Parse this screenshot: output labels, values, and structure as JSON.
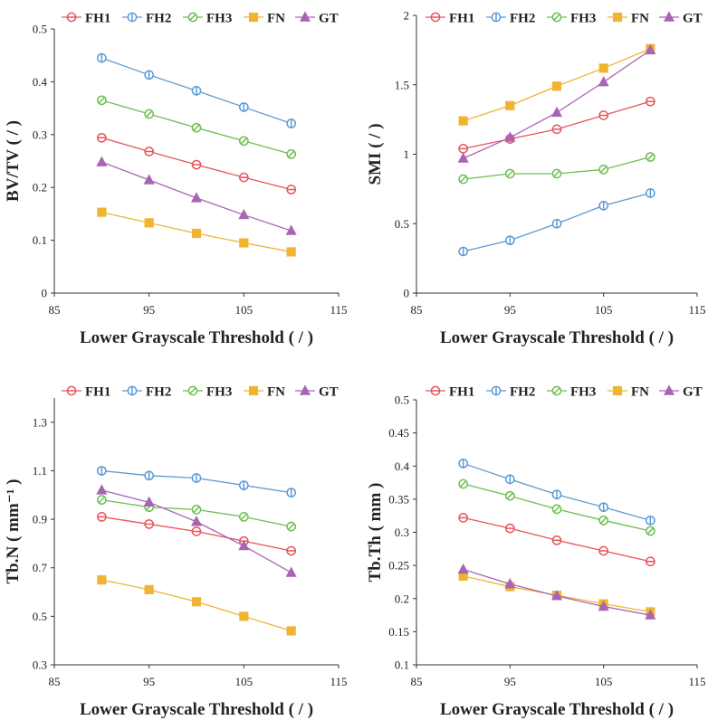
{
  "chart_data": [
    {
      "type": "line",
      "ylabel": "BV/TV ( / )",
      "xlabel": "Lower Grayscale Threshold ( / )",
      "xlim": [
        85,
        115
      ],
      "xticks": [
        85,
        95,
        105,
        115
      ],
      "xtick_labels": [
        "85",
        "95",
        "105",
        "115"
      ],
      "ylim": [
        0,
        0.5
      ],
      "yticks": [
        0,
        0.1,
        0.2,
        0.3,
        0.4,
        0.5
      ],
      "ytick_labels": [
        "0",
        "0.1",
        "0.2",
        "0.3",
        "0.4",
        "0.5"
      ],
      "x": [
        90,
        95,
        100,
        105,
        110
      ],
      "series": [
        {
          "name": "FH1",
          "values": [
            0.294,
            0.268,
            0.243,
            0.219,
            0.196
          ]
        },
        {
          "name": "FH2",
          "values": [
            0.445,
            0.413,
            0.383,
            0.352,
            0.321
          ]
        },
        {
          "name": "FH3",
          "values": [
            0.365,
            0.339,
            0.313,
            0.288,
            0.263
          ]
        },
        {
          "name": "FN",
          "values": [
            0.153,
            0.133,
            0.113,
            0.095,
            0.078
          ]
        },
        {
          "name": "GT",
          "values": [
            0.248,
            0.214,
            0.18,
            0.148,
            0.118
          ]
        }
      ]
    },
    {
      "type": "line",
      "ylabel": "SMI ( / )",
      "xlabel": "Lower Grayscale Threshold ( / )",
      "xlim": [
        85,
        115
      ],
      "xticks": [
        85,
        95,
        105,
        115
      ],
      "xtick_labels": [
        "85",
        "95",
        "105",
        "115"
      ],
      "ylim": [
        0,
        2
      ],
      "yticks": [
        0,
        0.5,
        1,
        1.5,
        2
      ],
      "ytick_labels": [
        "0",
        "0.5",
        "1",
        "1.5",
        "2"
      ],
      "x": [
        90,
        95,
        100,
        105,
        110
      ],
      "series": [
        {
          "name": "FH1",
          "values": [
            1.04,
            1.11,
            1.18,
            1.28,
            1.38
          ]
        },
        {
          "name": "FH2",
          "values": [
            0.3,
            0.38,
            0.5,
            0.63,
            0.72
          ]
        },
        {
          "name": "FH3",
          "values": [
            0.82,
            0.86,
            0.86,
            0.89,
            0.98
          ]
        },
        {
          "name": "FN",
          "values": [
            1.24,
            1.35,
            1.49,
            1.62,
            1.76
          ]
        },
        {
          "name": "GT",
          "values": [
            0.97,
            1.12,
            1.3,
            1.52,
            1.75
          ]
        }
      ]
    },
    {
      "type": "line",
      "ylabel": "Tb.N ( mm⁻¹ )",
      "xlabel": "Lower Grayscale Threshold ( / )",
      "xlim": [
        85,
        115
      ],
      "xticks": [
        85,
        95,
        105,
        115
      ],
      "xtick_labels": [
        "85",
        "95",
        "105",
        "115"
      ],
      "ylim": [
        0.3,
        1.4
      ],
      "yticks": [
        0.3,
        0.5,
        0.7,
        0.9,
        1.1,
        1.3
      ],
      "ytick_labels": [
        "0.3",
        "0.5",
        "0.7",
        "0.9",
        "1.1",
        "1.3"
      ],
      "x": [
        90,
        95,
        100,
        105,
        110
      ],
      "series": [
        {
          "name": "FH1",
          "values": [
            0.91,
            0.88,
            0.85,
            0.81,
            0.77
          ]
        },
        {
          "name": "FH2",
          "values": [
            1.1,
            1.08,
            1.07,
            1.04,
            1.01
          ]
        },
        {
          "name": "FH3",
          "values": [
            0.98,
            0.95,
            0.94,
            0.91,
            0.87
          ]
        },
        {
          "name": "FN",
          "values": [
            0.65,
            0.61,
            0.56,
            0.5,
            0.44
          ]
        },
        {
          "name": "GT",
          "values": [
            1.02,
            0.97,
            0.89,
            0.79,
            0.68
          ]
        }
      ]
    },
    {
      "type": "line",
      "ylabel": "Tb.Th ( mm )",
      "xlabel": "Lower Grayscale Threshold ( / )",
      "xlim": [
        85,
        115
      ],
      "xticks": [
        85,
        95,
        105,
        115
      ],
      "xtick_labels": [
        "85",
        "95",
        "105",
        "115"
      ],
      "ylim": [
        0.1,
        0.5
      ],
      "yticks": [
        0.1,
        0.15,
        0.2,
        0.25,
        0.3,
        0.35,
        0.4,
        0.45,
        0.5
      ],
      "ytick_labels": [
        "0.1",
        "0.15",
        "0.2",
        "0.25",
        "0.3",
        "0.35",
        "0.4",
        "0.45",
        "0.5"
      ],
      "x": [
        90,
        95,
        100,
        105,
        110
      ],
      "series": [
        {
          "name": "FH1",
          "values": [
            0.322,
            0.306,
            0.288,
            0.272,
            0.256
          ]
        },
        {
          "name": "FH2",
          "values": [
            0.404,
            0.38,
            0.357,
            0.338,
            0.318
          ]
        },
        {
          "name": "FH3",
          "values": [
            0.373,
            0.355,
            0.335,
            0.318,
            0.302
          ]
        },
        {
          "name": "FN",
          "values": [
            0.234,
            0.218,
            0.205,
            0.192,
            0.18
          ]
        },
        {
          "name": "GT",
          "values": [
            0.244,
            0.222,
            0.204,
            0.188,
            0.175
          ]
        }
      ]
    }
  ],
  "styles": {
    "FH1": {
      "color": "#e8545a",
      "marker": "circle-hline",
      "icon": "circle-horizontal-line-marker-icon"
    },
    "FH2": {
      "color": "#5b9bd5",
      "marker": "circle-vline",
      "icon": "circle-vertical-line-marker-icon"
    },
    "FH3": {
      "color": "#6cbf4f",
      "marker": "circle-dline",
      "icon": "circle-diagonal-line-marker-icon"
    },
    "FN": {
      "color": "#f0b432",
      "marker": "square",
      "icon": "filled-square-marker-icon"
    },
    "GT": {
      "color": "#a865b4",
      "marker": "triangle",
      "icon": "filled-triangle-marker-icon"
    }
  }
}
